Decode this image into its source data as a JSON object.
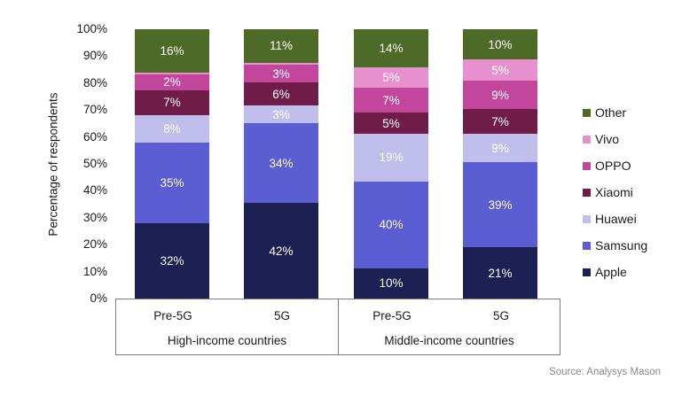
{
  "chart_data": {
    "type": "bar",
    "subtype": "stacked-percentage-column",
    "ylabel": "Percentage of respondents",
    "ylim": [
      0,
      100
    ],
    "ytick_step": 10,
    "yticks": [
      "0%",
      "10%",
      "20%",
      "30%",
      "40%",
      "50%",
      "60%",
      "70%",
      "80%",
      "90%",
      "100%"
    ],
    "categories": [
      "Pre-5G",
      "5G",
      "Pre-5G",
      "5G"
    ],
    "group_labels": {
      "high_income": "High-income countries",
      "middle_income": "Middle-income countries"
    },
    "legend_position": "right",
    "legend_order_top_to_bottom": [
      "Other",
      "Vivo",
      "OPPO",
      "Xiaomi",
      "Huawei",
      "Samsung",
      "Apple"
    ],
    "series": [
      {
        "name": "Apple",
        "color": "#1d2053",
        "values": [
          32,
          42,
          10,
          21
        ],
        "hide_labels": [
          false,
          false,
          false,
          false
        ]
      },
      {
        "name": "Samsung",
        "color": "#5a5ed2",
        "values": [
          35,
          34,
          40,
          39
        ],
        "hide_labels": [
          false,
          false,
          false,
          false
        ]
      },
      {
        "name": "Huawei",
        "color": "#c0bfec",
        "values": [
          8,
          3,
          19,
          9
        ],
        "hide_labels": [
          false,
          false,
          false,
          false
        ]
      },
      {
        "name": "Xiaomi",
        "color": "#6f1d48",
        "values": [
          7,
          6,
          5,
          7
        ],
        "hide_labels": [
          false,
          false,
          false,
          false
        ]
      },
      {
        "name": "OPPO",
        "color": "#c2479c",
        "values": [
          2,
          3,
          7,
          9
        ],
        "hide_labels": [
          false,
          false,
          false,
          false
        ]
      },
      {
        "name": "Vivo",
        "color": "#e690cd",
        "values": [
          1,
          1,
          5,
          5
        ],
        "hide_labels": [
          true,
          true,
          false,
          false
        ]
      },
      {
        "name": "Other",
        "color": "#4d6b26",
        "values": [
          16,
          11,
          14,
          10
        ],
        "hide_labels": [
          false,
          false,
          false,
          false
        ]
      }
    ]
  },
  "source": "Source: Analysys Mason"
}
